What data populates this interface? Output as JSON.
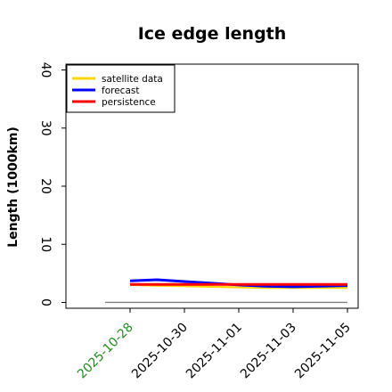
{
  "chart_data": {
    "type": "line",
    "title": "Ice edge length",
    "xlabel": "",
    "ylabel": "Length (1000km)",
    "x": [
      "2025-10-28",
      "2025-10-29",
      "2025-10-30",
      "2025-10-31",
      "2025-11-01",
      "2025-11-02",
      "2025-11-03",
      "2025-11-04",
      "2025-11-05"
    ],
    "x_ticks": [
      "2025-10-28",
      "2025-10-30",
      "2025-11-01",
      "2025-11-03",
      "2025-11-05"
    ],
    "x_tick_colors": [
      "#228B22",
      "#000000",
      "#000000",
      "#000000",
      "#000000"
    ],
    "ylim": [
      -1,
      41
    ],
    "y_ticks": [
      0,
      10,
      20,
      30,
      40
    ],
    "grid": false,
    "legend_position": "top-left",
    "series": [
      {
        "name": "satellite data",
        "color": "#FFD700",
        "values": [
          3.0,
          2.9,
          2.8,
          2.7,
          2.6,
          2.5,
          2.5,
          2.5,
          2.5
        ]
      },
      {
        "name": "forecast",
        "color": "#0000FF",
        "values": [
          3.7,
          3.9,
          3.6,
          3.3,
          3.0,
          2.8,
          2.7,
          2.8,
          2.9
        ]
      },
      {
        "name": "persistence",
        "color": "#FF0000",
        "values": [
          3.1,
          3.1,
          3.1,
          3.1,
          3.1,
          3.1,
          3.1,
          3.1,
          3.1
        ]
      }
    ],
    "reference_line": {
      "value": 0,
      "color": "#808080"
    }
  }
}
